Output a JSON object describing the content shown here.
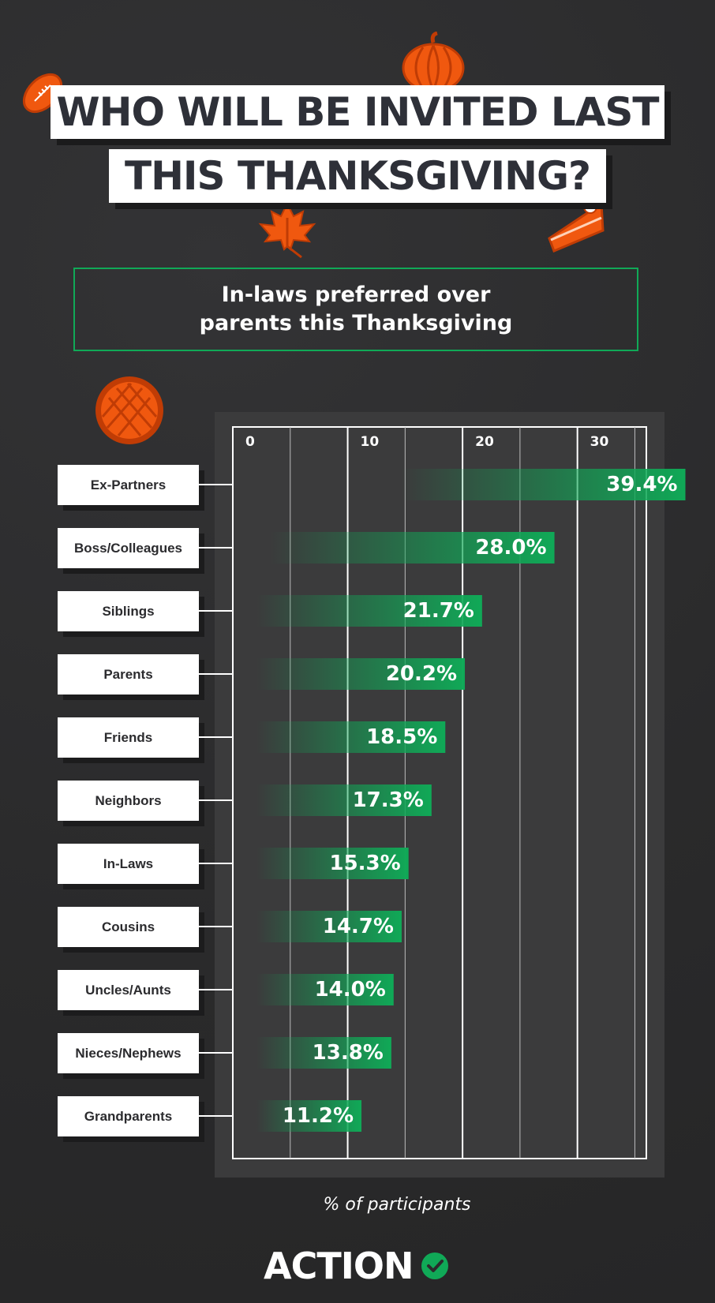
{
  "title": {
    "line1": "WHO WILL BE INVITED LAST",
    "line2": "THIS THANKSGIVING?"
  },
  "subtitle": {
    "line1": "In-laws preferred over",
    "line2": "parents this Thanksgiving"
  },
  "brand": {
    "name": "ACTION",
    "icon": "check-circle-icon"
  },
  "colors": {
    "background": "#2b2b2c",
    "panel": "#3b3b3c",
    "accent_green": "#10a957",
    "accent_orange": "#f0580f",
    "title_text": "#2e3038"
  },
  "decorations": [
    "football-icon",
    "pumpkin-icon",
    "maple-leaf-icon",
    "pie-slice-icon",
    "lattice-pie-icon"
  ],
  "chart_data": {
    "type": "bar",
    "orientation": "horizontal",
    "categories": [
      "Ex-Partners",
      "Boss/Colleagues",
      "Siblings",
      "Parents",
      "Friends",
      "Neighbors",
      "In-Laws",
      "Cousins",
      "Uncles/Aunts",
      "Nieces/Nephews",
      "Grandparents"
    ],
    "values": [
      39.4,
      28.0,
      21.7,
      20.2,
      18.5,
      17.3,
      15.3,
      14.7,
      14.0,
      13.8,
      11.2
    ],
    "value_labels": [
      "39.4%",
      "28.0%",
      "21.7%",
      "20.2%",
      "18.5%",
      "17.3%",
      "15.3%",
      "14.7%",
      "14.0%",
      "13.8%",
      "11.2%"
    ],
    "xticks": [
      "0",
      "10",
      "20",
      "30"
    ],
    "xtick_values": [
      0,
      10,
      20,
      30
    ],
    "xlim": [
      0,
      36
    ],
    "xlabel": "% of participants",
    "grid": true
  }
}
